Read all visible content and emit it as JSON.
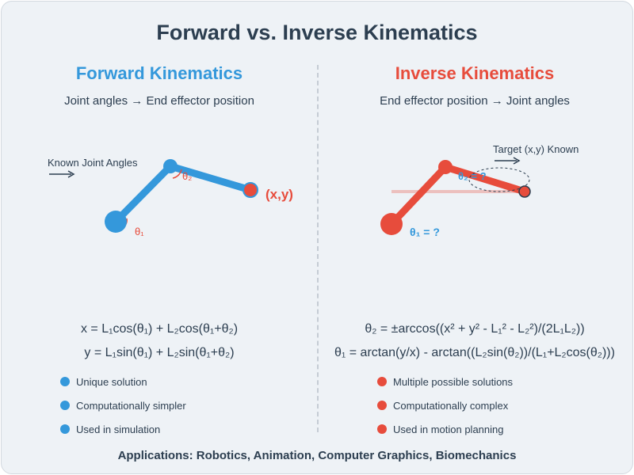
{
  "title": "Forward vs. Inverse Kinematics",
  "forward": {
    "title": "Forward Kinematics",
    "subtitle": "Joint angles → End effector position",
    "known_label": "Known Joint Angles",
    "theta1": "θ₁",
    "theta2": "θ₂",
    "endpoint_label": "(x,y)",
    "equations": [
      "x = L₁cos(θ₁) + L₂cos(θ₁+θ₂)",
      "y = L₁sin(θ₁) + L₂sin(θ₁+θ₂)"
    ],
    "bullets": [
      "Unique solution",
      "Computationally simpler",
      "Used in simulation"
    ]
  },
  "inverse": {
    "title": "Inverse Kinematics",
    "subtitle": "End effector position → Joint angles",
    "target_label": "Target (x,y) Known",
    "theta1": "θ₁ = ?",
    "theta2": "θ₂ = ?",
    "equations": [
      "θ₂ = ±arccos((x² + y² - L₁² - L₂²)/(2L₁L₂))",
      "θ₁ = arctan(y/x) - arctan((L₂sin(θ₂))/(L₁+L₂cos(θ₂)))"
    ],
    "bullets": [
      "Multiple possible solutions",
      "Computationally complex",
      "Used in motion planning"
    ]
  },
  "footer": "Applications: Robotics, Animation, Computer Graphics, Biomechanics",
  "colors": {
    "blue": "#3498db",
    "red": "#e74c3c",
    "dark": "#2c3e50",
    "background": "#eef2f6"
  }
}
